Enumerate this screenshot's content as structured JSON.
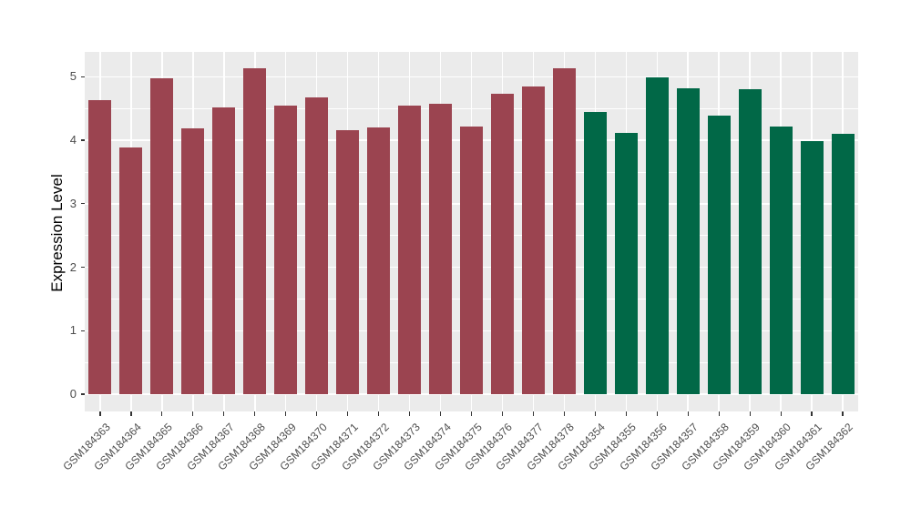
{
  "chart_data": {
    "type": "bar",
    "title": "",
    "xlabel": "",
    "ylabel": "Expression Level",
    "ylim": [
      0,
      5.39
    ],
    "yticks": [
      0,
      1,
      2,
      3,
      4,
      5
    ],
    "grid": "white major and minor horizontal lines, white vertical lines at bar centers, on grey panel",
    "legend": "none",
    "categories": [
      "GSM184363",
      "GSM184364",
      "GSM184365",
      "GSM184366",
      "GSM184367",
      "GSM184368",
      "GSM184369",
      "GSM184370",
      "GSM184371",
      "GSM184372",
      "GSM184373",
      "GSM184374",
      "GSM184375",
      "GSM184376",
      "GSM184377",
      "GSM184378",
      "GSM184354",
      "GSM184355",
      "GSM184356",
      "GSM184357",
      "GSM184358",
      "GSM184359",
      "GSM184360",
      "GSM184361",
      "GSM184362"
    ],
    "bars": [
      {
        "label": "GSM184363",
        "value": 4.63,
        "color": "#9B4450"
      },
      {
        "label": "GSM184364",
        "value": 3.89,
        "color": "#9B4450"
      },
      {
        "label": "GSM184365",
        "value": 4.97,
        "color": "#9B4450"
      },
      {
        "label": "GSM184366",
        "value": 4.18,
        "color": "#9B4450"
      },
      {
        "label": "GSM184367",
        "value": 4.51,
        "color": "#9B4450"
      },
      {
        "label": "GSM184368",
        "value": 5.13,
        "color": "#9B4450"
      },
      {
        "label": "GSM184369",
        "value": 4.54,
        "color": "#9B4450"
      },
      {
        "label": "GSM184370",
        "value": 4.67,
        "color": "#9B4450"
      },
      {
        "label": "GSM184371",
        "value": 4.16,
        "color": "#9B4450"
      },
      {
        "label": "GSM184372",
        "value": 4.2,
        "color": "#9B4450"
      },
      {
        "label": "GSM184373",
        "value": 4.54,
        "color": "#9B4450"
      },
      {
        "label": "GSM184374",
        "value": 4.57,
        "color": "#9B4450"
      },
      {
        "label": "GSM184375",
        "value": 4.22,
        "color": "#9B4450"
      },
      {
        "label": "GSM184376",
        "value": 4.73,
        "color": "#9B4450"
      },
      {
        "label": "GSM184377",
        "value": 4.85,
        "color": "#9B4450"
      },
      {
        "label": "GSM184378",
        "value": 5.13,
        "color": "#9B4450"
      },
      {
        "label": "GSM184354",
        "value": 4.44,
        "color": "#016847"
      },
      {
        "label": "GSM184355",
        "value": 4.12,
        "color": "#016847"
      },
      {
        "label": "GSM184356",
        "value": 4.99,
        "color": "#016847"
      },
      {
        "label": "GSM184357",
        "value": 4.82,
        "color": "#016847"
      },
      {
        "label": "GSM184358",
        "value": 4.39,
        "color": "#016847"
      },
      {
        "label": "GSM184359",
        "value": 4.8,
        "color": "#016847"
      },
      {
        "label": "GSM184360",
        "value": 4.22,
        "color": "#016847"
      },
      {
        "label": "GSM184361",
        "value": 3.99,
        "color": "#016847"
      },
      {
        "label": "GSM184362",
        "value": 4.1,
        "color": "#016847"
      }
    ],
    "group_colors": {
      "left_group": "#9B4450",
      "right_group": "#016847"
    }
  },
  "style": {
    "page_bg": "#FFFFFF",
    "panel_bg": "#EBEBEB",
    "grid_color": "#FFFFFF",
    "tick_color": "#333333",
    "axis_text_color": "#4D4D4D",
    "axis_title_color": "#000000"
  }
}
